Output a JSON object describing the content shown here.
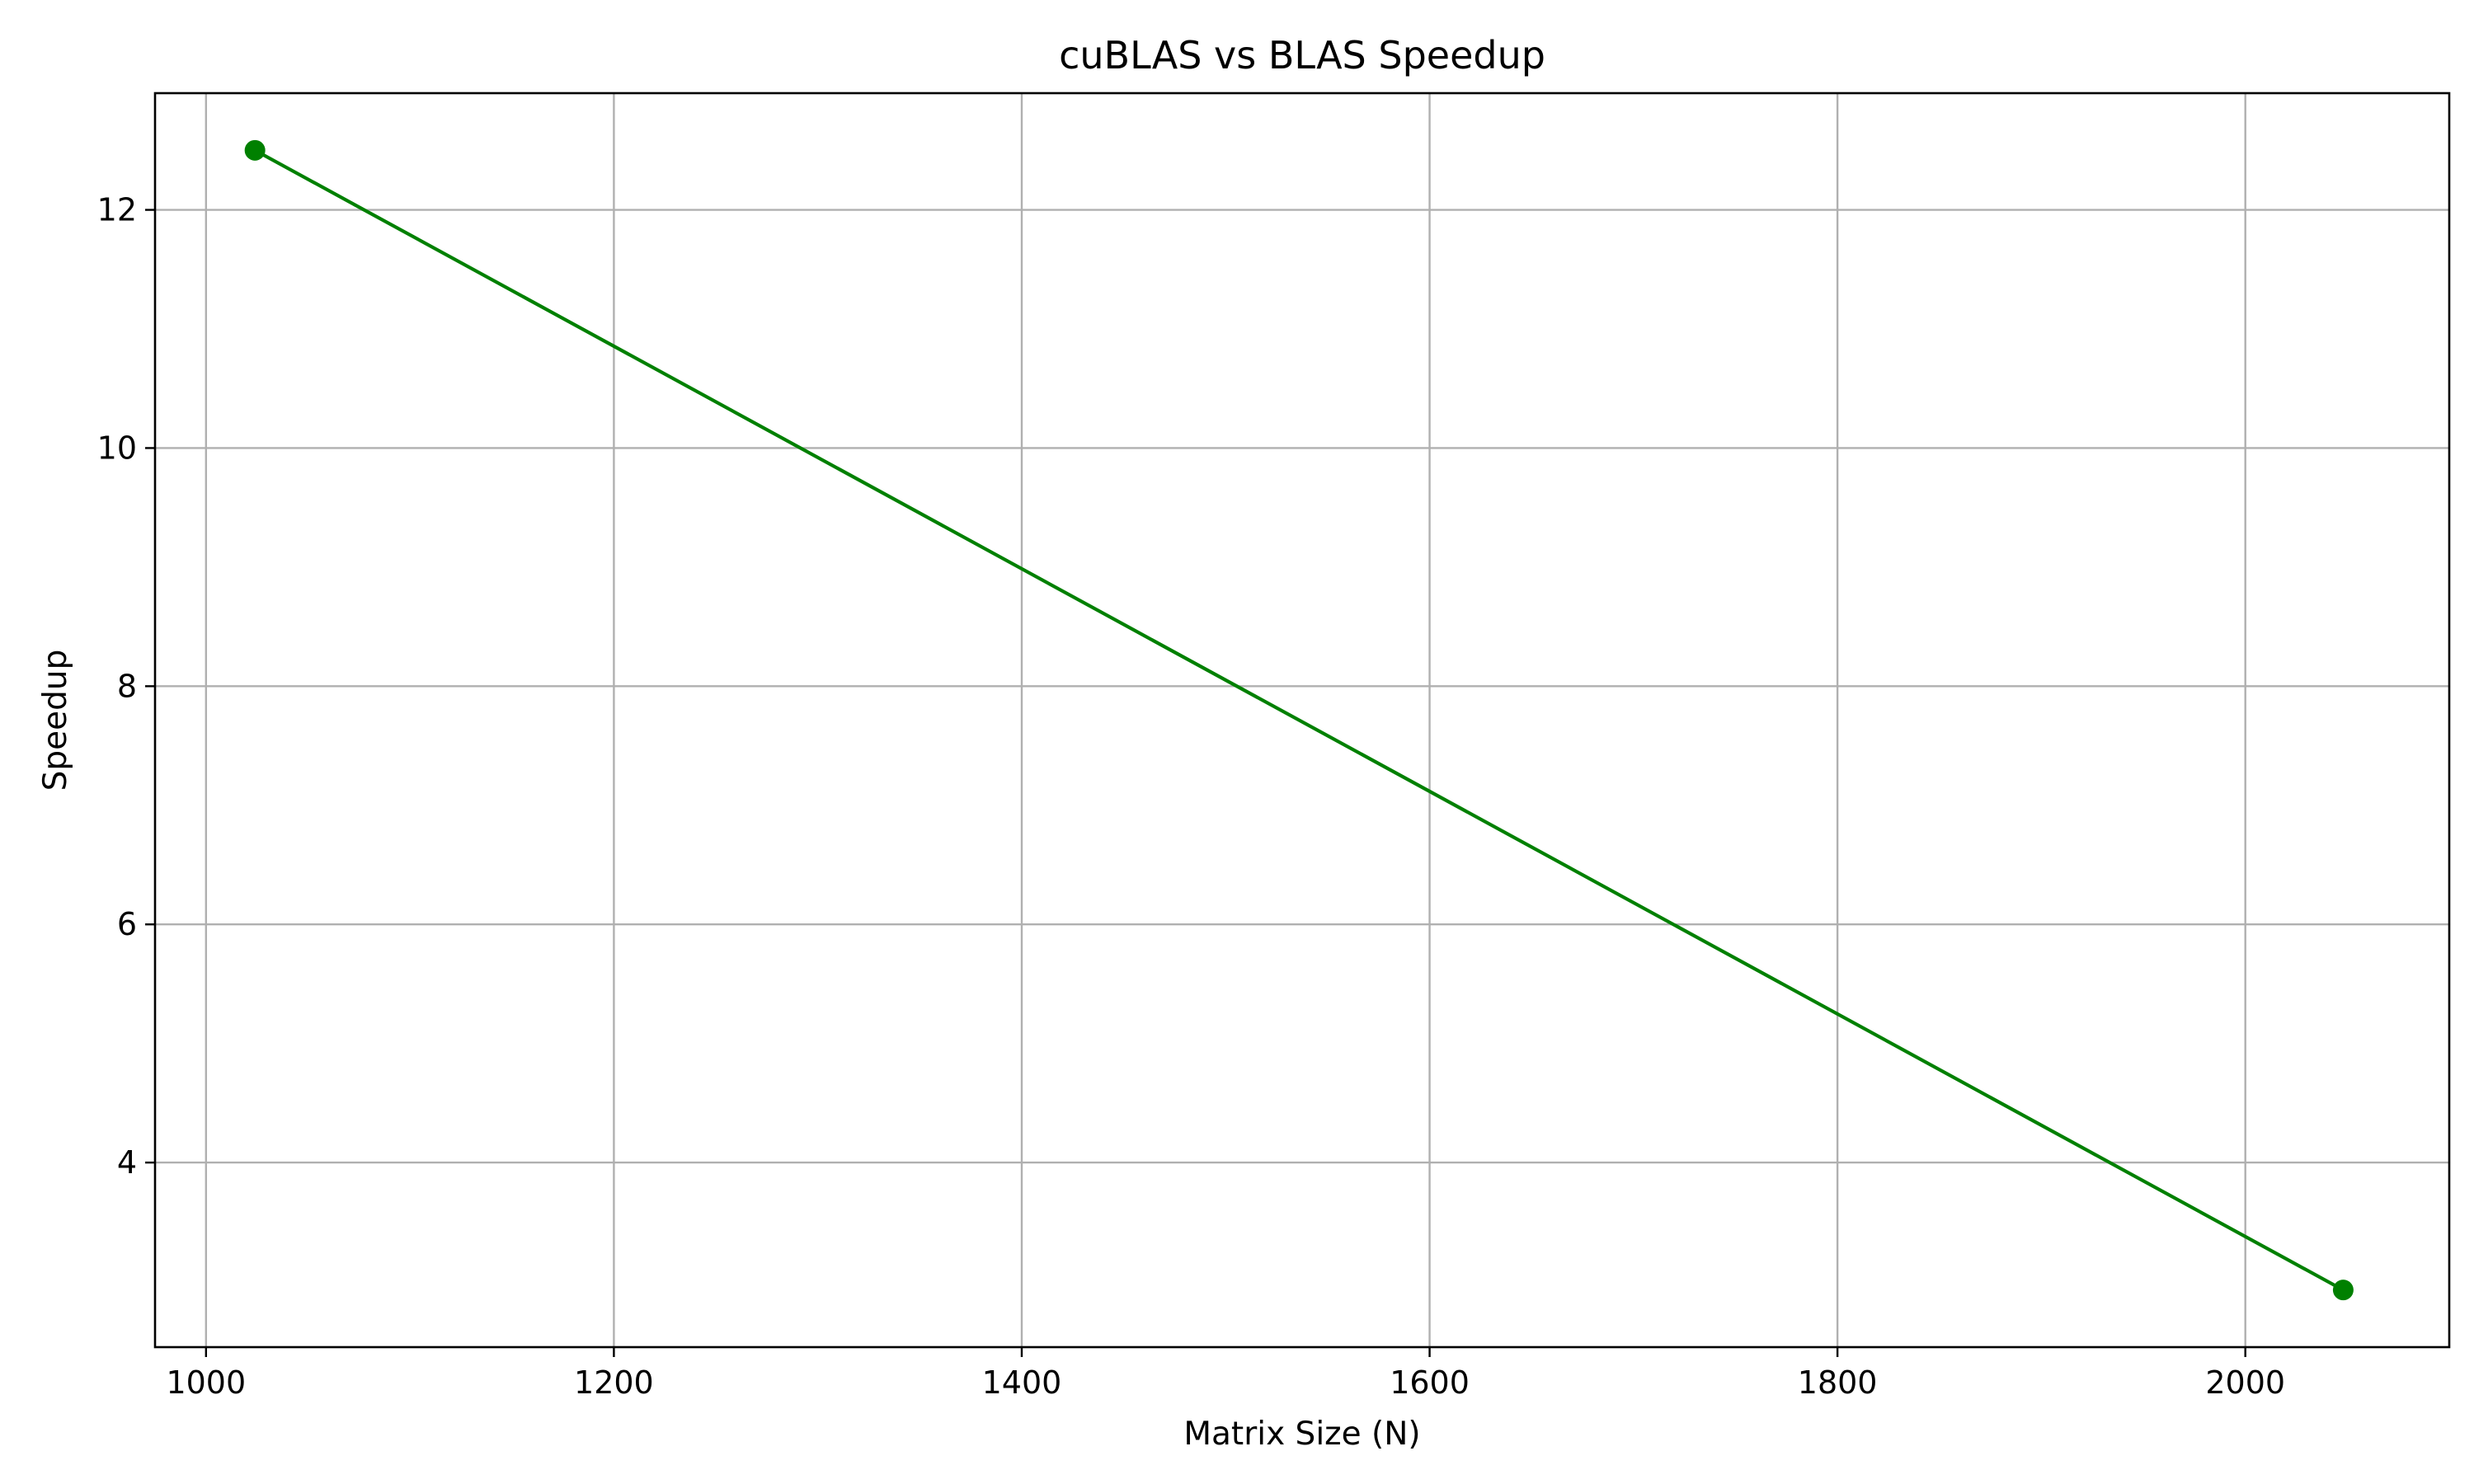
{
  "chart_data": {
    "type": "line",
    "title": "cuBLAS vs BLAS Speedup",
    "xlabel": "Matrix Size (N)",
    "ylabel": "Speedup",
    "xlim": [
      975,
      2100
    ],
    "ylim": [
      2.45,
      12.98
    ],
    "xticks": [
      1000,
      1200,
      1400,
      1600,
      1800,
      2000
    ],
    "yticks": [
      4,
      6,
      8,
      10,
      12
    ],
    "grid": true,
    "series": [
      {
        "color": "#008000",
        "marker": "circle",
        "x": [
          1024,
          2048
        ],
        "y": [
          12.5,
          2.93
        ]
      }
    ]
  }
}
